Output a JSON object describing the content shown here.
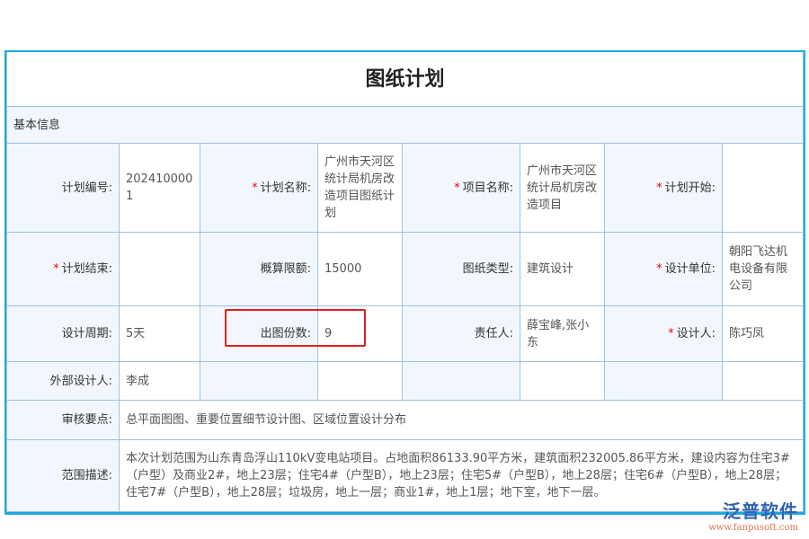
{
  "title": "图纸计划",
  "section": "基本信息",
  "fields": {
    "plan_no": {
      "label": "计划编号:",
      "value": "2024100001"
    },
    "plan_name": {
      "label": "计划名称:",
      "value": "广州市天河区统计局机房改造项目图纸计划"
    },
    "project_name": {
      "label": "项目名称:",
      "value": "广州市天河区统计局机房改造项目"
    },
    "plan_start": {
      "label": "计划开始:",
      "value": ""
    },
    "plan_end": {
      "label": "计划结束:",
      "value": ""
    },
    "budget": {
      "label": "概算限额:",
      "value": "15000"
    },
    "drawing_type": {
      "label": "图纸类型:",
      "value": "建筑设计"
    },
    "design_unit": {
      "label": "设计单位:",
      "value": "朝阳飞达机电设备有限公司"
    },
    "design_period": {
      "label": "设计周期:",
      "value": "5天"
    },
    "copies": {
      "label": "出图份数:",
      "value": "9"
    },
    "responsible": {
      "label": "责任人:",
      "value": "薛宝峰,张小东"
    },
    "designer": {
      "label": "设计人:",
      "value": "陈巧凤"
    },
    "external_designer": {
      "label": "外部设计人:",
      "value": "李成"
    },
    "review_points": {
      "label": "审核要点:",
      "value": "总平面图图、重要位置细节设计图、区域位置设计分布"
    },
    "scope": {
      "label": "范围描述:",
      "value": "本次计划范围为山东青岛浮山110kV变电站项目。占地面积86133.90平方米，建筑面积232005.86平方米，建设内容为住宅3#（户型）及商业2#，地上23层；住宅4#（户型B），地上23层；住宅5#（户型B），地上28层；住宅6#（户型B），地上28层；住宅7#（户型B），地上28层；垃圾房，地上一层；商业1#，地上1层；地下室，地下一层。"
    }
  },
  "required_mark": "*",
  "logo": {
    "name": "泛普软件",
    "url": "www.fanpusoft.com"
  },
  "colors": {
    "border": "#1ea7e1",
    "label_bg": "#f2f7fd",
    "required": "#e00000",
    "highlight": "#e02020"
  }
}
